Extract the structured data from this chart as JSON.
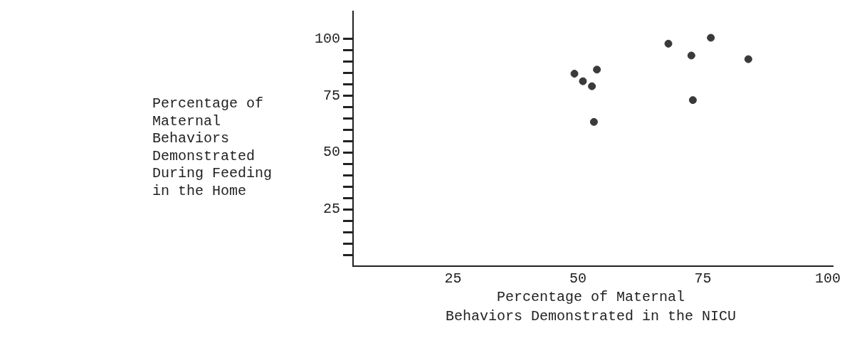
{
  "chart_data": {
    "type": "scatter",
    "xlabel": "Percentage of Maternal\nBehaviors Demonstrated in the NICU",
    "ylabel": "Percentage of\nMaternal\nBehaviors\nDemonstrated\nDuring Feeding\nin the Home",
    "x": [
      49.3,
      51.0,
      52.8,
      53.8,
      53.2,
      68.1,
      72.7,
      73.0,
      76.6,
      84.1
    ],
    "values": [
      84.6,
      81.3,
      79.1,
      86.4,
      63.4,
      97.8,
      92.6,
      73.0,
      100.4,
      91.0
    ],
    "color": "#3a3a3a",
    "marker": "circle",
    "xlim": [
      5,
      101
    ],
    "xticks": [
      25,
      50,
      75,
      100
    ],
    "ylim": [
      0,
      112
    ],
    "yticks": [
      {
        "value": 5,
        "label": null
      },
      {
        "value": 10,
        "label": null
      },
      {
        "value": 15,
        "label": null
      },
      {
        "value": 20,
        "label": null
      },
      25,
      {
        "value": 30,
        "label": null
      },
      {
        "value": 35,
        "label": null
      },
      {
        "value": 40,
        "label": null
      },
      {
        "value": 45,
        "label": null
      },
      50,
      {
        "value": 55,
        "label": null
      },
      {
        "value": 60,
        "label": null
      },
      {
        "value": 65,
        "label": null
      },
      {
        "value": 70,
        "label": null
      },
      75,
      {
        "value": 80,
        "label": null
      },
      {
        "value": 85,
        "label": null
      },
      {
        "value": 90,
        "label": null
      },
      {
        "value": 95,
        "label": null
      },
      100
    ]
  }
}
